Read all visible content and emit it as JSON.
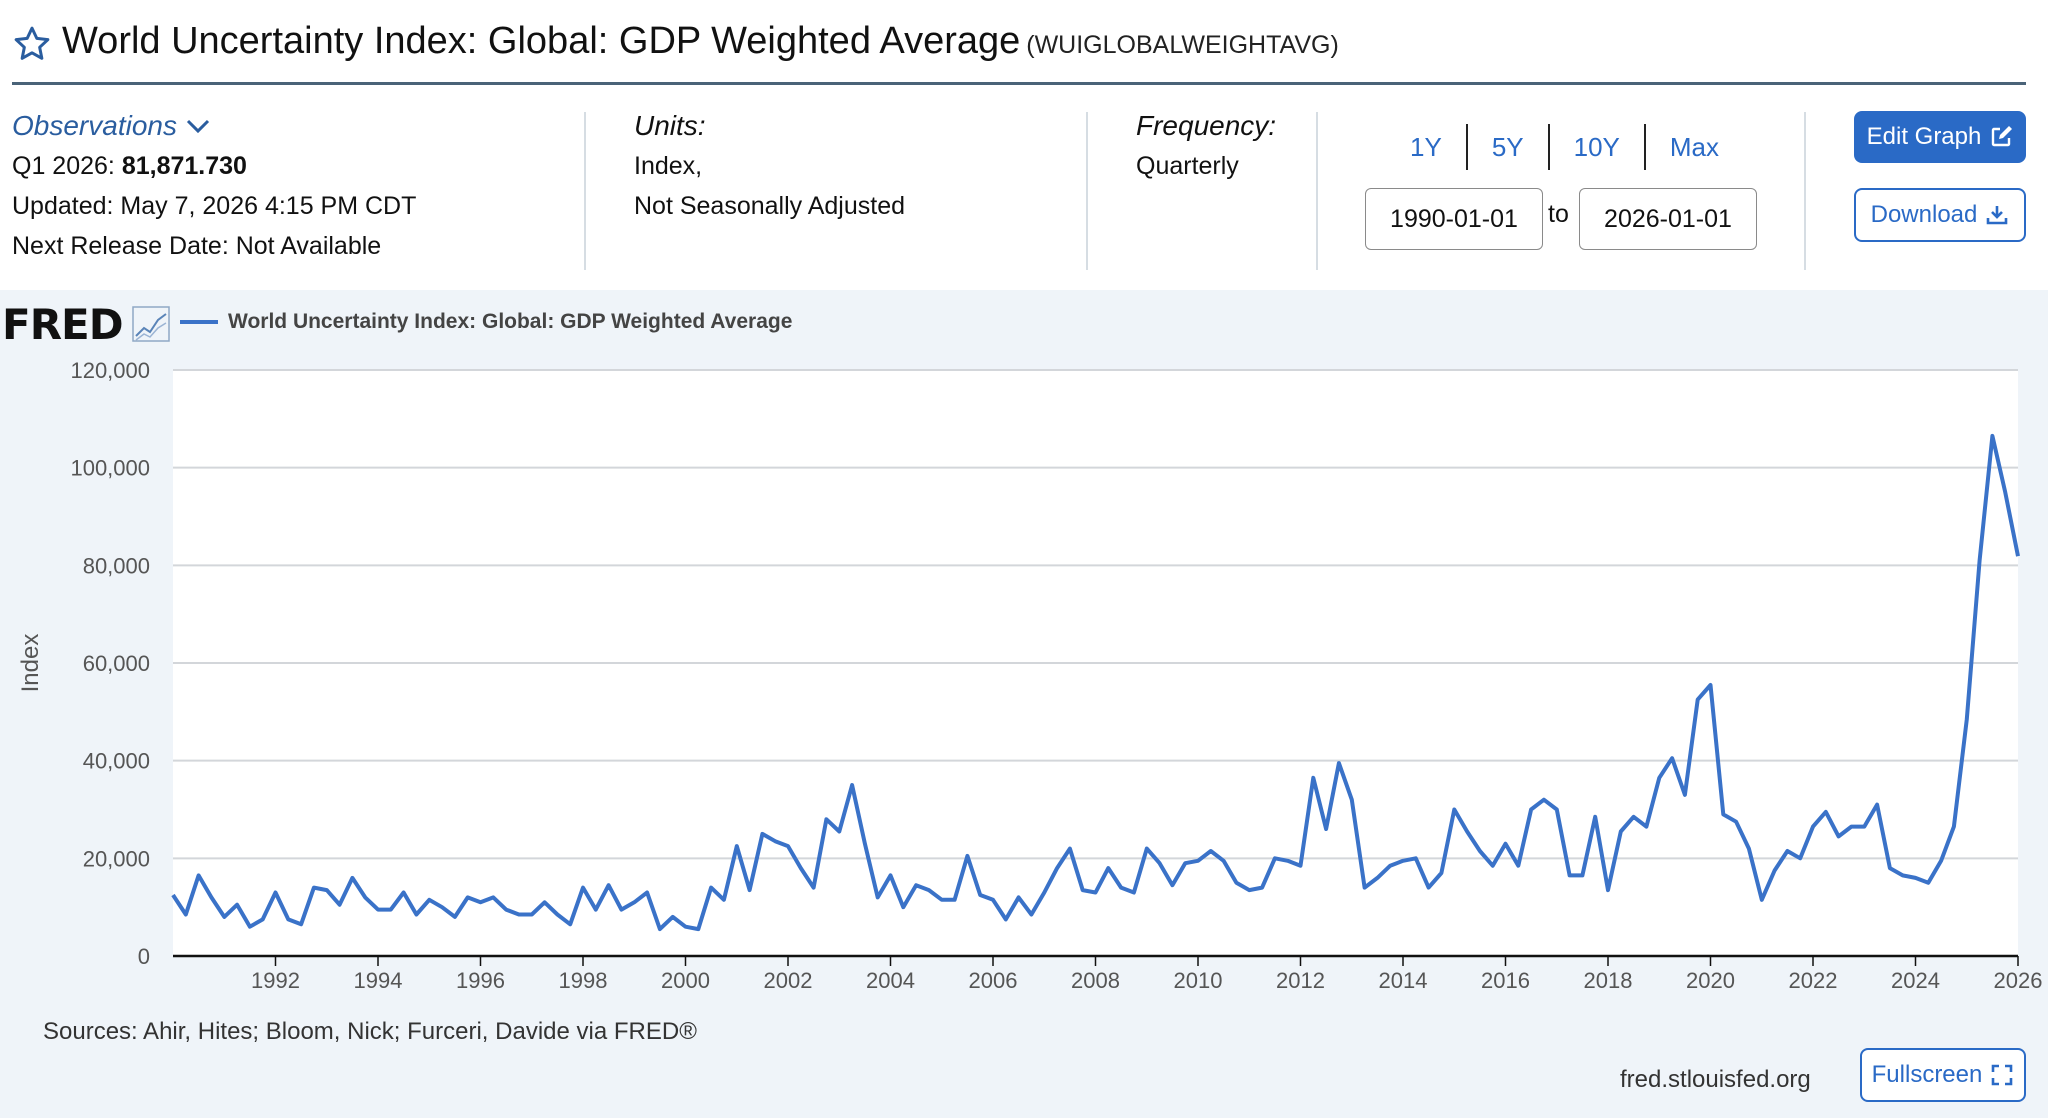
{
  "header": {
    "title": "World Uncertainty Index: Global: GDP Weighted Average",
    "series_id": "(WUIGLOBALWEIGHTAVG)",
    "observations_label": "Observations",
    "obs_period": "Q1 2026:",
    "obs_value": "81,871.730",
    "updated": "Updated: May 7, 2026 4:15 PM CDT",
    "next_release": "Next Release Date: Not Available",
    "units_label": "Units:",
    "units_line1": "Index,",
    "units_line2": "Not Seasonally Adjusted",
    "frequency_label": "Frequency:",
    "frequency_value": "Quarterly",
    "range_buttons": [
      "1Y",
      "5Y",
      "10Y",
      "Max"
    ],
    "start_date": "1990-01-01",
    "to_label": "to",
    "end_date": "2026-01-01",
    "edit_label": "Edit Graph",
    "download_label": "Download"
  },
  "graph": {
    "logo_text": "FRED",
    "sources": "Sources: Ahir, Hites; Bloom, Nick; Furceri, Davide via FRED®",
    "site": "fred.stlouisfed.org",
    "fullscreen_label": "Fullscreen"
  },
  "colors": {
    "series": "#3a72c8",
    "accent": "#2a6ac6",
    "panel": "#eff4f9"
  },
  "chart_data": {
    "type": "line",
    "ylabel": "Index",
    "ylim": [
      0,
      120000
    ],
    "yticks": [
      0,
      20000,
      40000,
      60000,
      80000,
      100000,
      120000
    ],
    "ytick_labels": [
      "0",
      "20,000",
      "40,000",
      "60,000",
      "80,000",
      "100,000",
      "120,000"
    ],
    "xlim": [
      "1990-01-01",
      "2026-01-01"
    ],
    "xticks": [
      "1992",
      "1994",
      "1996",
      "1998",
      "2000",
      "2002",
      "2004",
      "2006",
      "2008",
      "2010",
      "2012",
      "2014",
      "2016",
      "2018",
      "2020",
      "2022",
      "2024",
      "2026"
    ],
    "grid": true,
    "series": [
      {
        "name": "World Uncertainty Index: Global: GDP Weighted Average",
        "x": [
          "1990-01-01",
          "1990-04-01",
          "1990-07-01",
          "1990-10-01",
          "1991-01-01",
          "1991-04-01",
          "1991-07-01",
          "1991-10-01",
          "1992-01-01",
          "1992-04-01",
          "1992-07-01",
          "1992-10-01",
          "1993-01-01",
          "1993-04-01",
          "1993-07-01",
          "1993-10-01",
          "1994-01-01",
          "1994-04-01",
          "1994-07-01",
          "1994-10-01",
          "1995-01-01",
          "1995-04-01",
          "1995-07-01",
          "1995-10-01",
          "1996-01-01",
          "1996-04-01",
          "1996-07-01",
          "1996-10-01",
          "1997-01-01",
          "1997-04-01",
          "1997-07-01",
          "1997-10-01",
          "1998-01-01",
          "1998-04-01",
          "1998-07-01",
          "1998-10-01",
          "1999-01-01",
          "1999-04-01",
          "1999-07-01",
          "1999-10-01",
          "2000-01-01",
          "2000-04-01",
          "2000-07-01",
          "2000-10-01",
          "2001-01-01",
          "2001-04-01",
          "2001-07-01",
          "2001-10-01",
          "2002-01-01",
          "2002-04-01",
          "2002-07-01",
          "2002-10-01",
          "2003-01-01",
          "2003-04-01",
          "2003-07-01",
          "2003-10-01",
          "2004-01-01",
          "2004-04-01",
          "2004-07-01",
          "2004-10-01",
          "2005-01-01",
          "2005-04-01",
          "2005-07-01",
          "2005-10-01",
          "2006-01-01",
          "2006-04-01",
          "2006-07-01",
          "2006-10-01",
          "2007-01-01",
          "2007-04-01",
          "2007-07-01",
          "2007-10-01",
          "2008-01-01",
          "2008-04-01",
          "2008-07-01",
          "2008-10-01",
          "2009-01-01",
          "2009-04-01",
          "2009-07-01",
          "2009-10-01",
          "2010-01-01",
          "2010-04-01",
          "2010-07-01",
          "2010-10-01",
          "2011-01-01",
          "2011-04-01",
          "2011-07-01",
          "2011-10-01",
          "2012-01-01",
          "2012-04-01",
          "2012-07-01",
          "2012-10-01",
          "2013-01-01",
          "2013-04-01",
          "2013-07-01",
          "2013-10-01",
          "2014-01-01",
          "2014-04-01",
          "2014-07-01",
          "2014-10-01",
          "2015-01-01",
          "2015-04-01",
          "2015-07-01",
          "2015-10-01",
          "2016-01-01",
          "2016-04-01",
          "2016-07-01",
          "2016-10-01",
          "2017-01-01",
          "2017-04-01",
          "2017-07-01",
          "2017-10-01",
          "2018-01-01",
          "2018-04-01",
          "2018-07-01",
          "2018-10-01",
          "2019-01-01",
          "2019-04-01",
          "2019-07-01",
          "2019-10-01",
          "2020-01-01",
          "2020-04-01",
          "2020-07-01",
          "2020-10-01",
          "2021-01-01",
          "2021-04-01",
          "2021-07-01",
          "2021-10-01",
          "2022-01-01",
          "2022-04-01",
          "2022-07-01",
          "2022-10-01",
          "2023-01-01",
          "2023-04-01",
          "2023-07-01",
          "2023-10-01",
          "2024-01-01",
          "2024-04-01",
          "2024-07-01",
          "2024-10-01",
          "2025-01-01",
          "2025-04-01",
          "2025-07-01",
          "2025-10-01",
          "2026-01-01"
        ],
        "y": [
          12500,
          8500,
          16500,
          12000,
          8000,
          10500,
          6000,
          7500,
          13000,
          7500,
          6500,
          14000,
          13500,
          10500,
          16000,
          12000,
          9500,
          9500,
          13000,
          8500,
          11500,
          10000,
          8000,
          12000,
          11000,
          12000,
          9500,
          8500,
          8500,
          11000,
          8500,
          6500,
          14000,
          9500,
          14500,
          9500,
          11000,
          13000,
          5500,
          8000,
          6000,
          5500,
          14000,
          11500,
          22500,
          13500,
          25000,
          23500,
          22500,
          18000,
          14000,
          28000,
          25500,
          35000,
          23000,
          12000,
          16500,
          10000,
          14500,
          13500,
          11500,
          11500,
          20500,
          12500,
          11500,
          7500,
          12000,
          8500,
          13000,
          18000,
          22000,
          13500,
          13000,
          18000,
          14000,
          13000,
          22000,
          19000,
          14500,
          19000,
          19500,
          21500,
          19500,
          15000,
          13500,
          14000,
          20000,
          19500,
          18500,
          36500,
          26000,
          39500,
          32000,
          14000,
          16000,
          18500,
          19500,
          20000,
          14000,
          17000,
          30000,
          25500,
          21500,
          18500,
          23000,
          18500,
          30000,
          32000,
          30000,
          16500,
          16500,
          28500,
          13500,
          25500,
          28500,
          26500,
          36500,
          40500,
          33000,
          52500,
          55500,
          29000,
          27500,
          22000,
          11500,
          17500,
          21500,
          20000,
          26500,
          29500,
          24500,
          26500,
          26500,
          31000,
          18000,
          16500,
          16000,
          15000,
          19500,
          26500,
          48500,
          81000,
          106500,
          95000,
          81871.73
        ]
      }
    ]
  }
}
